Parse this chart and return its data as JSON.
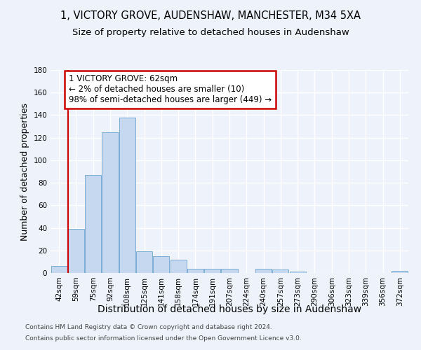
{
  "title": "1, VICTORY GROVE, AUDENSHAW, MANCHESTER, M34 5XA",
  "subtitle": "Size of property relative to detached houses in Audenshaw",
  "xlabel": "Distribution of detached houses by size in Audenshaw",
  "ylabel": "Number of detached properties",
  "categories": [
    "42sqm",
    "59sqm",
    "75sqm",
    "92sqm",
    "108sqm",
    "125sqm",
    "141sqm",
    "158sqm",
    "174sqm",
    "191sqm",
    "207sqm",
    "224sqm",
    "240sqm",
    "257sqm",
    "273sqm",
    "290sqm",
    "306sqm",
    "323sqm",
    "339sqm",
    "356sqm",
    "372sqm"
  ],
  "values": [
    6,
    39,
    87,
    125,
    138,
    19,
    15,
    12,
    4,
    4,
    4,
    0,
    4,
    3,
    1,
    0,
    0,
    0,
    0,
    0,
    2
  ],
  "bar_color": "#c5d8f0",
  "bar_edgecolor": "#7badd4",
  "vline_color": "#cc0000",
  "vline_xindex": 1,
  "annotation_text": "1 VICTORY GROVE: 62sqm\n← 2% of detached houses are smaller (10)\n98% of semi-detached houses are larger (449) →",
  "annotation_box_color": "#ffffff",
  "annotation_border_color": "#cc0000",
  "ylim": [
    0,
    180
  ],
  "yticks": [
    0,
    20,
    40,
    60,
    80,
    100,
    120,
    140,
    160,
    180
  ],
  "footer_line1": "Contains HM Land Registry data © Crown copyright and database right 2024.",
  "footer_line2": "Contains public sector information licensed under the Open Government Licence v3.0.",
  "bg_color": "#eef2fa",
  "grid_color": "#ffffff",
  "title_fontsize": 10.5,
  "subtitle_fontsize": 9.5,
  "ylabel_fontsize": 9,
  "xlabel_fontsize": 10,
  "tick_fontsize": 7.5,
  "annotation_fontsize": 8.5,
  "footer_fontsize": 6.5
}
